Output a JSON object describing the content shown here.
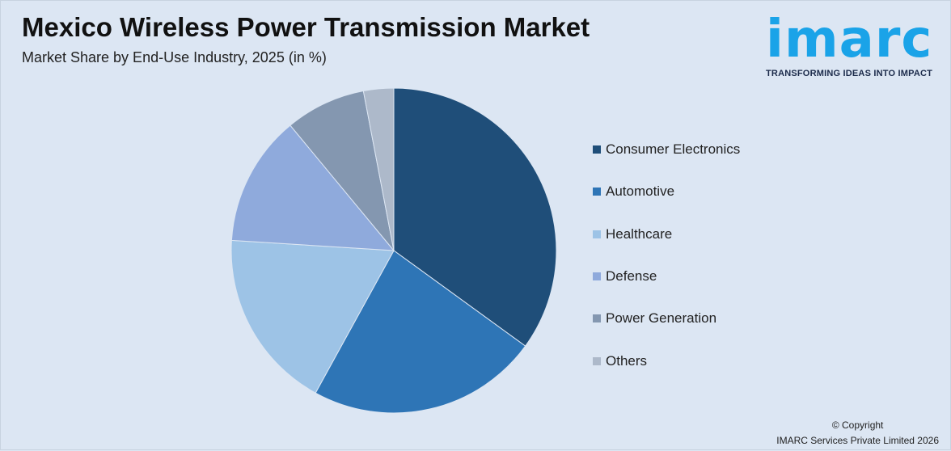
{
  "header": {
    "title": "Mexico Wireless Power Transmission Market",
    "subtitle": "Market Share by End-Use Industry, 2025 (in %)"
  },
  "logo": {
    "word": "imarc",
    "tagline": "TRANSFORMING IDEAS INTO IMPACT"
  },
  "footer": {
    "copyright": "© Copyright",
    "company": "IMARC Services Private Limited 2026"
  },
  "chart_data": {
    "type": "pie",
    "title": "Mexico Wireless Power Transmission Market",
    "subtitle": "Market Share by End-Use Industry, 2025 (in %)",
    "categories": [
      "Consumer Electronics",
      "Automotive",
      "Healthcare",
      "Defense",
      "Power Generation",
      "Others"
    ],
    "values": [
      35,
      23,
      18,
      13,
      8,
      3
    ],
    "colors": [
      "#1f4e79",
      "#2e75b6",
      "#9dc3e6",
      "#8faadc",
      "#8497b0",
      "#adb9ca"
    ],
    "legend": "right"
  }
}
